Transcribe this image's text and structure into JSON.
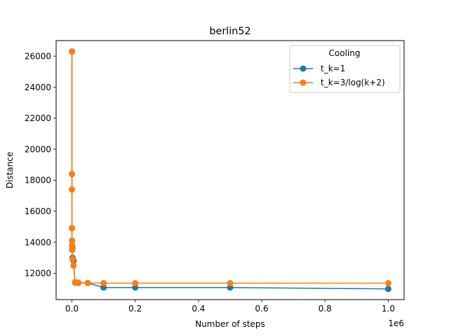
{
  "chart_data": {
    "type": "line",
    "title": "berlin52",
    "xlabel": "Number of steps",
    "ylabel": "Distance",
    "x_offset_text": "1e6",
    "xlim": [
      -0.05,
      1.05
    ],
    "ylim": [
      10300,
      27000
    ],
    "x_ticks": [
      0.0,
      0.2,
      0.4,
      0.6,
      0.8,
      1.0
    ],
    "x_tick_labels": [
      "0.0",
      "0.2",
      "0.4",
      "0.6",
      "0.8",
      "1.0"
    ],
    "y_ticks": [
      12000,
      14000,
      16000,
      18000,
      20000,
      22000,
      24000,
      26000
    ],
    "y_tick_labels": [
      "12000",
      "14000",
      "16000",
      "18000",
      "20000",
      "22000",
      "24000",
      "26000"
    ],
    "grid": false,
    "legend": {
      "title": "Cooling",
      "placement": "top-right"
    },
    "series": [
      {
        "name": "t_k=1",
        "color": "#1f77b4",
        "x": [
          1e-05,
          2e-05,
          5e-05,
          0.0001,
          0.0002,
          0.0005,
          0.001,
          0.002,
          0.005,
          0.01,
          0.02,
          0.05,
          0.1,
          0.2,
          0.5,
          1.0
        ],
        "y": [
          26300,
          18400,
          17400,
          14900,
          14100,
          13800,
          13600,
          13000,
          12800,
          11400,
          11380,
          11370,
          11080,
          11080,
          11080,
          10990
        ]
      },
      {
        "name": "t_k=3/log(k+2)",
        "color": "#ff7f0e",
        "x": [
          1e-05,
          2e-05,
          5e-05,
          0.0001,
          0.0002,
          0.0005,
          0.001,
          0.002,
          0.005,
          0.01,
          0.02,
          0.05,
          0.1,
          0.2,
          0.5,
          1.0
        ],
        "y": [
          26300,
          18400,
          17400,
          14900,
          14100,
          13800,
          13500,
          12900,
          12500,
          11420,
          11400,
          11370,
          11360,
          11360,
          11360,
          11360
        ]
      }
    ]
  }
}
